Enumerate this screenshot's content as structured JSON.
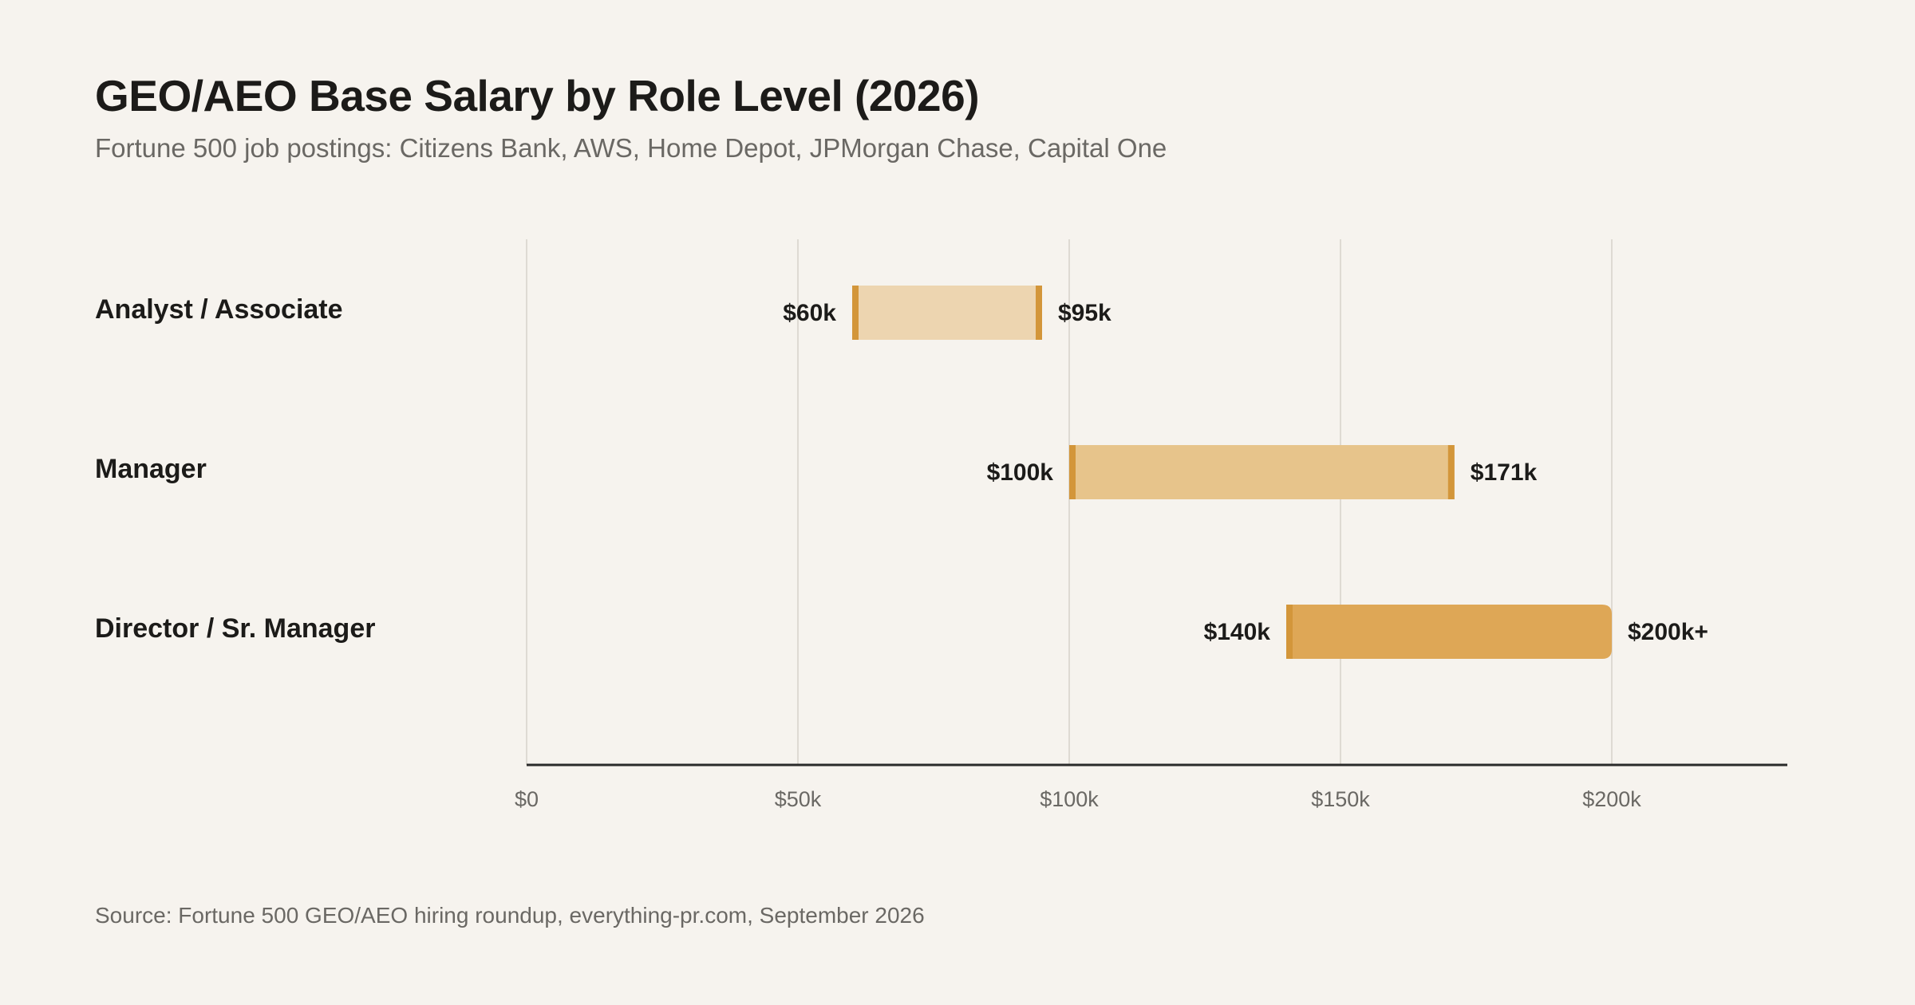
{
  "title": "GEO/AEO Base Salary by Role Level (2026)",
  "subtitle": "Fortune 500 job postings: Citizens Bank, AWS, Home Depot, JPMorgan Chase, Capital One",
  "source": "Source: Fortune 500 GEO/AEO hiring roundup, everything-pr.com, September 2026",
  "chart_data": {
    "type": "bar",
    "orientation": "horizontal-range",
    "title": "GEO/AEO Base Salary by Role Level (2026)",
    "subtitle": "Fortune 500 job postings: Citizens Bank, AWS, Home Depot, JPMorgan Chase, Capital One",
    "xlabel": "",
    "ylabel": "",
    "xlim": [
      0,
      232000
    ],
    "grid": true,
    "x_ticks": [
      {
        "value": 0,
        "label": "$0"
      },
      {
        "value": 50000,
        "label": "$50k"
      },
      {
        "value": 100000,
        "label": "$100k"
      },
      {
        "value": 150000,
        "label": "$150k"
      },
      {
        "value": 200000,
        "label": "$200k"
      }
    ],
    "categories": [
      "Analyst / Associate",
      "Manager",
      "Director / Sr. Manager"
    ],
    "ranges": [
      {
        "category": "Analyst / Associate",
        "low": 60000,
        "high": 95000,
        "low_label": "$60k",
        "high_label": "$95k",
        "open_ended": false,
        "color": "#edd5b0"
      },
      {
        "category": "Manager",
        "low": 100000,
        "high": 171000,
        "low_label": "$100k",
        "high_label": "$171k",
        "open_ended": false,
        "color": "#e7c48b"
      },
      {
        "category": "Director / Sr. Manager",
        "low": 140000,
        "high": 200000,
        "low_label": "$140k",
        "high_label": "$200k+",
        "open_ended": true,
        "color": "#dea756"
      }
    ],
    "marker_color": "#d3963a",
    "grid_color": "#dedad3",
    "axis_color": "#2a2a2a"
  }
}
